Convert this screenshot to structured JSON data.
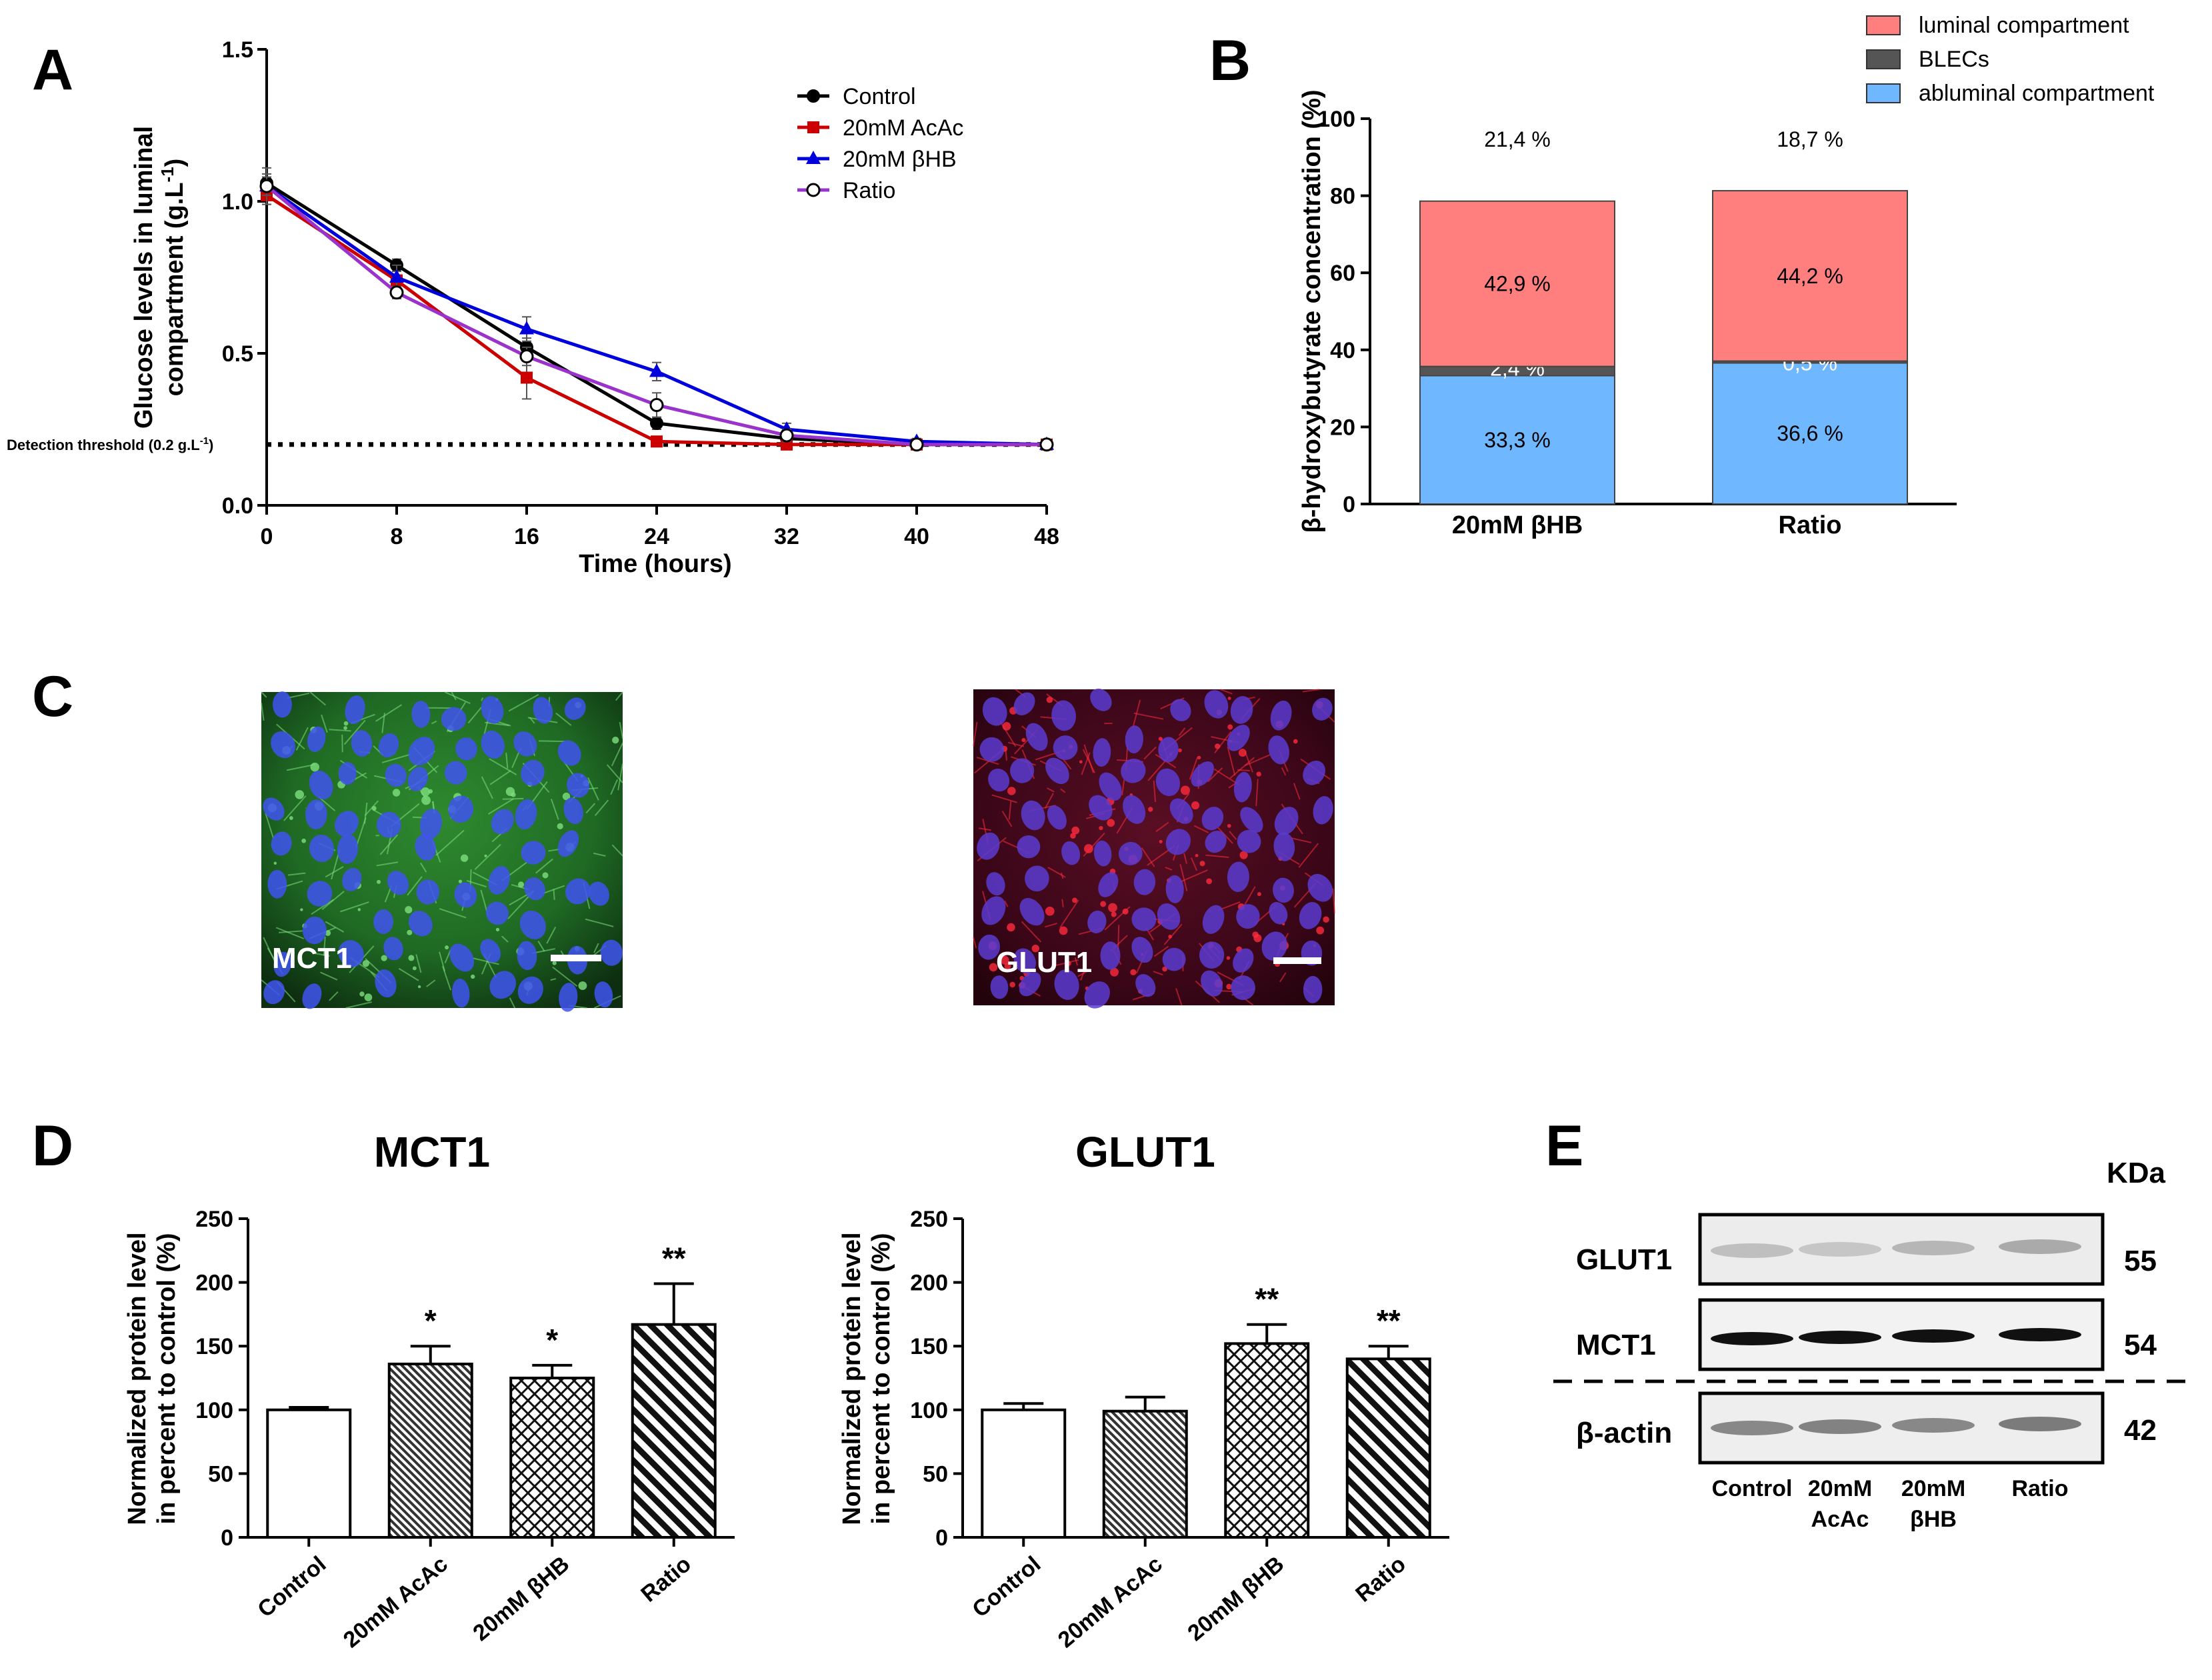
{
  "figure": {
    "panel_labels": [
      "A",
      "B",
      "C",
      "D",
      "E"
    ]
  },
  "chart_data": [
    {
      "id": "A",
      "type": "line",
      "xlabel": "Time (hours)",
      "ylabel_line1": "Glucose levels in luminal",
      "ylabel_line2": "compartment (g.L",
      "ylabel_sup": "-1",
      "ylabel_end": ")",
      "x": [
        0,
        8,
        16,
        24,
        32,
        40,
        48
      ],
      "xticks": [
        "0",
        "8",
        "16",
        "24",
        "32",
        "40",
        "48"
      ],
      "yticks": [
        "0.0",
        "0.5",
        "1.0",
        "1.5"
      ],
      "ylim": [
        0,
        1.5
      ],
      "xlim": [
        0,
        48
      ],
      "threshold": {
        "value": 0.2,
        "label": "Detection threshold (0.2 g.L",
        "label_sup": "-1",
        "label_end": ")"
      },
      "series": [
        {
          "name": "Control",
          "color": "#000000",
          "marker": "circle-filled",
          "values": [
            1.06,
            0.79,
            0.52,
            0.27,
            0.22,
            0.2,
            0.2
          ],
          "errors": [
            0.03,
            0.02,
            0.03,
            0.02,
            0.01,
            0.01,
            0.01
          ]
        },
        {
          "name": "20mM AcAc",
          "color": "#cc0000",
          "marker": "square",
          "values": [
            1.02,
            0.74,
            0.42,
            0.21,
            0.2,
            0.2,
            0.2
          ],
          "errors": [
            0.03,
            0.03,
            0.07,
            0.01,
            0.01,
            0.01,
            0.01
          ]
        },
        {
          "name": "20mM βHB",
          "color": "#0000dd",
          "marker": "triangle",
          "values": [
            1.05,
            0.75,
            0.58,
            0.44,
            0.25,
            0.21,
            0.2
          ],
          "errors": [
            0.06,
            0.04,
            0.04,
            0.03,
            0.02,
            0.01,
            0.01
          ]
        },
        {
          "name": "Ratio",
          "color": "#9933cc",
          "marker": "circle-open",
          "values": [
            1.05,
            0.7,
            0.49,
            0.33,
            0.23,
            0.2,
            0.2
          ],
          "errors": [
            0.03,
            0.02,
            0.03,
            0.04,
            0.02,
            0.01,
            0.01
          ]
        }
      ]
    },
    {
      "id": "B",
      "type": "bar",
      "stacked": true,
      "ylabel": "β-hydroxybutyrate concentration (%)",
      "yticks": [
        "0",
        "20",
        "40",
        "60",
        "80",
        "100"
      ],
      "ylim": [
        0,
        100
      ],
      "categories": [
        "20mM βHB",
        "Ratio"
      ],
      "series": [
        {
          "name": "abluminal compartment",
          "color": "#6fb8ff",
          "values": [
            33.3,
            36.6
          ],
          "labels": [
            "33,3 %",
            "36,6 %"
          ]
        },
        {
          "name": "BLECs",
          "color": "#555555",
          "values": [
            2.4,
            0.5
          ],
          "labels": [
            "2,4 %",
            "0,5 %"
          ]
        },
        {
          "name": "luminal compartment",
          "color": "#ff7f7f",
          "values": [
            42.9,
            44.2
          ],
          "labels": [
            "42,9 %",
            "44,2 %"
          ]
        }
      ],
      "top_labels": [
        "21,4 %",
        "18,7 %"
      ],
      "legend": [
        "luminal compartment",
        "BLECs",
        "abluminal compartment"
      ]
    },
    {
      "id": "D1",
      "type": "bar",
      "title": "MCT1",
      "ylabel_line1": "Normalized protein level",
      "ylabel_line2": "in percent to control (%)",
      "yticks": [
        "0",
        "50",
        "100",
        "150",
        "200",
        "250"
      ],
      "ylim": [
        0,
        250
      ],
      "categories": [
        "Control",
        "20mM AcAc",
        "20mM βHB",
        "Ratio"
      ],
      "values": [
        100,
        136,
        125,
        167
      ],
      "errors": [
        2,
        14,
        10,
        32
      ],
      "significance": [
        "",
        "*",
        "*",
        "**"
      ],
      "patterns": [
        "none",
        "dense-diag",
        "cross",
        "diag"
      ]
    },
    {
      "id": "D2",
      "type": "bar",
      "title": "GLUT1",
      "ylabel_line1": "Normalized protein level",
      "ylabel_line2": "in percent to control (%)",
      "yticks": [
        "0",
        "50",
        "100",
        "150",
        "200",
        "250"
      ],
      "ylim": [
        0,
        250
      ],
      "categories": [
        "Control",
        "20mM AcAc",
        "20mM βHB",
        "Ratio"
      ],
      "values": [
        100,
        99,
        152,
        140
      ],
      "errors": [
        5,
        11,
        15,
        10
      ],
      "significance": [
        "",
        "",
        "**",
        "**"
      ],
      "patterns": [
        "none",
        "dense-diag",
        "cross",
        "diag"
      ]
    }
  ],
  "panelC": {
    "images": [
      {
        "label": "MCT1",
        "stain": "green"
      },
      {
        "label": "GLUT1",
        "stain": "red"
      }
    ]
  },
  "panelE": {
    "kda_header": "KDa",
    "rows": [
      {
        "name": "GLUT1",
        "kda": "55"
      },
      {
        "name": "MCT1",
        "kda": "54"
      },
      {
        "name": "β-actin",
        "kda": "42"
      }
    ],
    "lanes": [
      {
        "line1": "Control",
        "line2": ""
      },
      {
        "line1": "20mM",
        "line2": "AcAc"
      },
      {
        "line1": "20mM",
        "line2": "βHB"
      },
      {
        "line1": "Ratio",
        "line2": ""
      }
    ]
  }
}
